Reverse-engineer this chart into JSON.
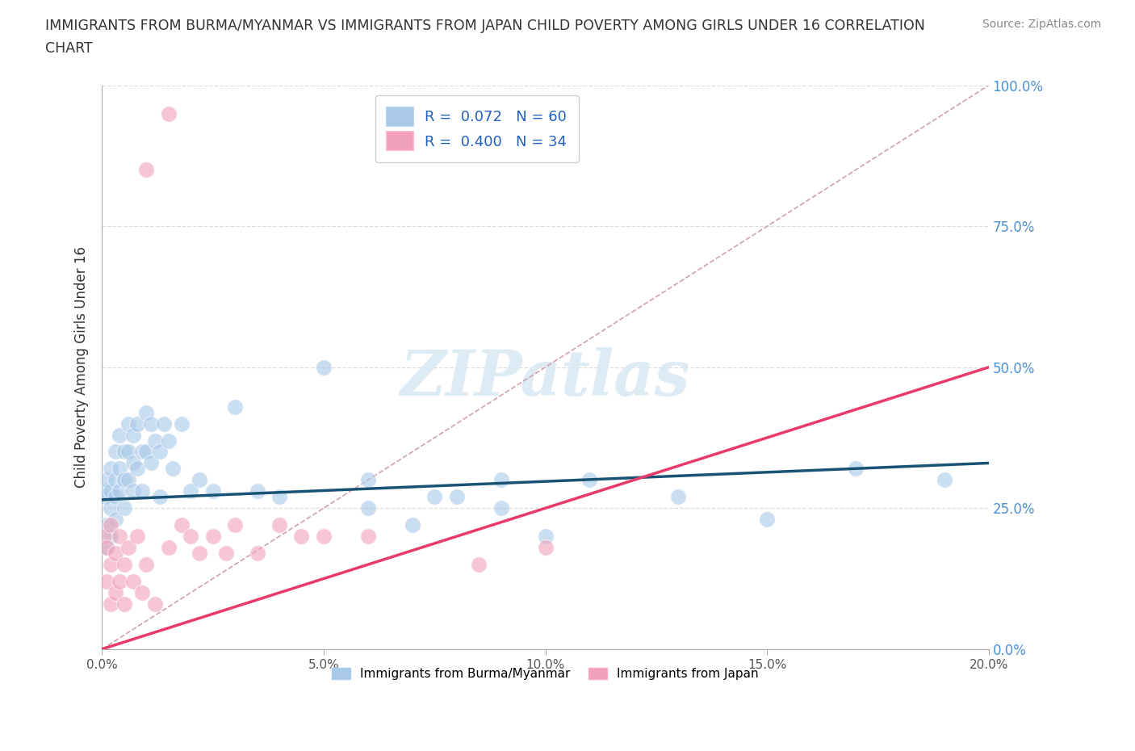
{
  "title_line1": "IMMIGRANTS FROM BURMA/MYANMAR VS IMMIGRANTS FROM JAPAN CHILD POVERTY AMONG GIRLS UNDER 16 CORRELATION",
  "title_line2": "CHART",
  "source_text": "Source: ZipAtlas.com",
  "ylabel": "Child Poverty Among Girls Under 16",
  "xlabel_legend1": "Immigrants from Burma/Myanmar",
  "xlabel_legend2": "Immigrants from Japan",
  "R1": 0.072,
  "N1": 60,
  "R2": 0.4,
  "N2": 34,
  "color1": "#A8C8E8",
  "color2": "#F0A0B8",
  "line_color1": "#1A5276",
  "line_color2": "#E8396A",
  "ref_line_color": "#D0A0B0",
  "xmin": 0.0,
  "xmax": 0.2,
  "ymin": 0.0,
  "ymax": 1.0,
  "yticks": [
    0.0,
    0.25,
    0.5,
    0.75,
    1.0
  ],
  "ytick_labels": [
    "0.0%",
    "25.0%",
    "50.0%",
    "75.0%",
    "100.0%"
  ],
  "xticks": [
    0.0,
    0.05,
    0.1,
    0.15,
    0.2
  ],
  "xtick_labels": [
    "0.0%",
    "5.0%",
    "10.0%",
    "15.0%",
    "20.0%"
  ],
  "watermark": "ZIPatlas",
  "background_color": "#FFFFFF",
  "grid_color": "#DDDDDD",
  "scatter1_x": [
    0.0005,
    0.001,
    0.001,
    0.001,
    0.001,
    0.002,
    0.002,
    0.002,
    0.002,
    0.003,
    0.003,
    0.003,
    0.003,
    0.004,
    0.004,
    0.004,
    0.005,
    0.005,
    0.005,
    0.006,
    0.006,
    0.006,
    0.007,
    0.007,
    0.007,
    0.008,
    0.008,
    0.009,
    0.009,
    0.01,
    0.01,
    0.011,
    0.011,
    0.012,
    0.013,
    0.013,
    0.014,
    0.015,
    0.016,
    0.018,
    0.02,
    0.022,
    0.025,
    0.03,
    0.035,
    0.04,
    0.05,
    0.06,
    0.08,
    0.09,
    0.06,
    0.07,
    0.075,
    0.09,
    0.1,
    0.11,
    0.13,
    0.15,
    0.17,
    0.19
  ],
  "scatter1_y": [
    0.27,
    0.28,
    0.22,
    0.3,
    0.18,
    0.32,
    0.25,
    0.2,
    0.28,
    0.35,
    0.27,
    0.3,
    0.23,
    0.38,
    0.28,
    0.32,
    0.35,
    0.25,
    0.3,
    0.4,
    0.3,
    0.35,
    0.38,
    0.28,
    0.33,
    0.4,
    0.32,
    0.35,
    0.28,
    0.42,
    0.35,
    0.4,
    0.33,
    0.37,
    0.35,
    0.27,
    0.4,
    0.37,
    0.32,
    0.4,
    0.28,
    0.3,
    0.28,
    0.43,
    0.28,
    0.27,
    0.5,
    0.25,
    0.27,
    0.3,
    0.3,
    0.22,
    0.27,
    0.25,
    0.2,
    0.3,
    0.27,
    0.23,
    0.32,
    0.3
  ],
  "scatter2_x": [
    0.0005,
    0.001,
    0.001,
    0.002,
    0.002,
    0.002,
    0.003,
    0.003,
    0.004,
    0.004,
    0.005,
    0.005,
    0.006,
    0.007,
    0.008,
    0.009,
    0.01,
    0.012,
    0.015,
    0.018,
    0.02,
    0.022,
    0.025,
    0.028,
    0.03,
    0.035,
    0.04,
    0.045,
    0.05,
    0.06,
    0.01,
    0.015,
    0.1,
    0.085
  ],
  "scatter2_y": [
    0.2,
    0.12,
    0.18,
    0.08,
    0.15,
    0.22,
    0.1,
    0.17,
    0.12,
    0.2,
    0.15,
    0.08,
    0.18,
    0.12,
    0.2,
    0.1,
    0.15,
    0.08,
    0.18,
    0.22,
    0.2,
    0.17,
    0.2,
    0.17,
    0.22,
    0.17,
    0.22,
    0.2,
    0.2,
    0.2,
    0.85,
    0.95,
    0.18,
    0.15
  ],
  "blue_line_x": [
    0.0,
    0.2
  ],
  "blue_line_y": [
    0.265,
    0.33
  ],
  "pink_line_x": [
    0.0,
    0.2
  ],
  "pink_line_y": [
    0.0,
    0.5
  ]
}
